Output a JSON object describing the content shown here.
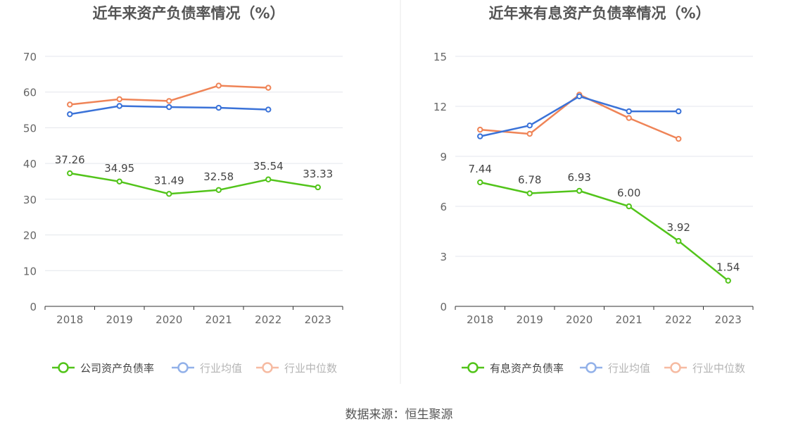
{
  "source_text": "数据来源：恒生聚源",
  "colors": {
    "company": "#52c41a",
    "industry_avg": "#3a72d8",
    "industry_median": "#ef8457",
    "grid": "#e3e6ec",
    "axis": "#333333",
    "tick_text": "#666666",
    "title_text": "#555555",
    "divider": "#e8e8e8"
  },
  "chart_data": [
    {
      "type": "line",
      "title": "近年来资产负债率情况（%）",
      "categories": [
        "2018",
        "2019",
        "2020",
        "2021",
        "2022",
        "2023"
      ],
      "ylim": [
        0,
        70
      ],
      "yticks": [
        "0",
        "10",
        "20",
        "30",
        "40",
        "50",
        "60",
        "70"
      ],
      "grid": true,
      "legend": "bottom",
      "series": [
        {
          "name": "公司资产负债率",
          "color_key": "company",
          "labeled": true,
          "values": [
            37.26,
            34.95,
            31.49,
            32.58,
            35.54,
            33.33
          ],
          "labels": [
            "37.26",
            "34.95",
            "31.49",
            "32.58",
            "35.54",
            "33.33"
          ]
        },
        {
          "name": "行业均值",
          "color_key": "industry_avg",
          "labeled": false,
          "values": [
            53.8,
            56.1,
            55.8,
            55.6,
            55.1,
            null
          ]
        },
        {
          "name": "行业中位数",
          "color_key": "industry_median",
          "labeled": false,
          "values": [
            56.5,
            58.0,
            57.5,
            61.8,
            61.2,
            null
          ]
        }
      ]
    },
    {
      "type": "line",
      "title": "近年来有息资产负债率情况（%）",
      "categories": [
        "2018",
        "2019",
        "2020",
        "2021",
        "2022",
        "2023"
      ],
      "ylim": [
        0,
        15
      ],
      "yticks": [
        "0",
        "3",
        "6",
        "9",
        "12",
        "15"
      ],
      "grid": true,
      "legend": "bottom",
      "series": [
        {
          "name": "有息资产负债率",
          "color_key": "company",
          "labeled": true,
          "values": [
            7.44,
            6.78,
            6.93,
            6.0,
            3.92,
            1.54
          ],
          "labels": [
            "7.44",
            "6.78",
            "6.93",
            "6.00",
            "3.92",
            "1.54"
          ]
        },
        {
          "name": "行业均值",
          "color_key": "industry_avg",
          "labeled": false,
          "values": [
            10.2,
            10.85,
            12.6,
            11.7,
            11.7,
            null
          ]
        },
        {
          "name": "行业中位数",
          "color_key": "industry_median",
          "labeled": false,
          "values": [
            10.6,
            10.35,
            12.7,
            11.3,
            10.05,
            null
          ]
        }
      ]
    }
  ]
}
